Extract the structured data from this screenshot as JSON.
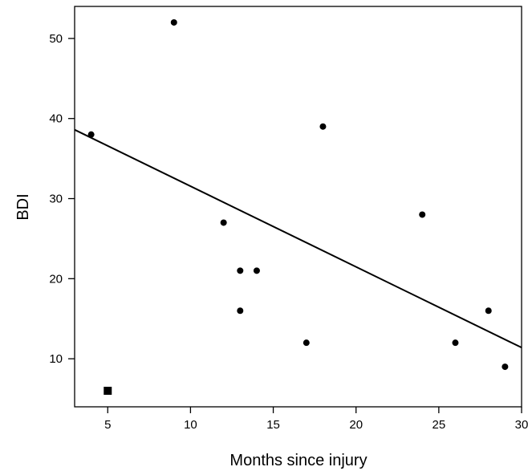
{
  "chart_data": {
    "type": "scatter",
    "title": "",
    "xlabel": "Months since injury",
    "ylabel": "BDI",
    "xlim": [
      3,
      30
    ],
    "ylim": [
      4,
      54
    ],
    "xticks": [
      5,
      10,
      15,
      20,
      25,
      30
    ],
    "yticks": [
      10,
      20,
      30,
      40,
      50
    ],
    "grid": false,
    "points": [
      {
        "x": 4,
        "y": 38,
        "marker": "circle"
      },
      {
        "x": 9,
        "y": 52,
        "marker": "circle"
      },
      {
        "x": 12,
        "y": 27,
        "marker": "circle"
      },
      {
        "x": 13,
        "y": 21,
        "marker": "circle"
      },
      {
        "x": 13,
        "y": 16,
        "marker": "circle"
      },
      {
        "x": 14,
        "y": 21,
        "marker": "circle"
      },
      {
        "x": 17,
        "y": 12,
        "marker": "circle"
      },
      {
        "x": 18,
        "y": 39,
        "marker": "circle"
      },
      {
        "x": 24,
        "y": 28,
        "marker": "circle"
      },
      {
        "x": 26,
        "y": 12,
        "marker": "circle"
      },
      {
        "x": 28,
        "y": 16,
        "marker": "circle"
      },
      {
        "x": 29,
        "y": 9,
        "marker": "circle"
      },
      {
        "x": 5,
        "y": 6,
        "marker": "square"
      }
    ],
    "regression_line": {
      "x": [
        3,
        30
      ],
      "y": [
        38.6,
        11.4
      ]
    }
  }
}
